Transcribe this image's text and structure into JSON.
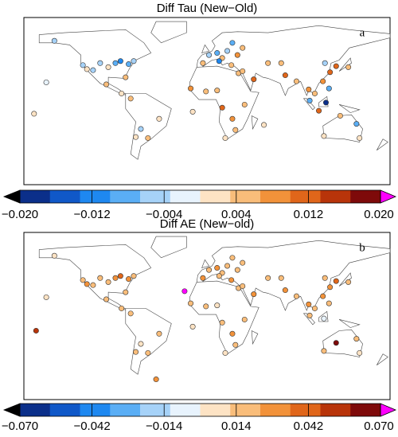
{
  "chart_data": [
    {
      "type": "scatter-map",
      "title": "Diff Tau (New−Old)",
      "label": "a",
      "lon": [
        -122,
        -118,
        -112,
        -105,
        -97,
        -90,
        -85,
        -77,
        -72,
        -80,
        -99,
        -84,
        -75,
        -58,
        -47,
        -65,
        -70,
        -150,
        -158,
        -170,
        2,
        10,
        15,
        25,
        35,
        20,
        -4,
        12,
        24,
        30,
        -16,
        -1,
        10,
        31,
        46,
        35,
        37,
        28,
        18,
        25,
        15,
        77,
        88,
        100,
        116,
        121,
        127,
        139,
        114,
        106,
        120,
        110,
        101,
        117,
        147,
        131,
        115,
        150,
        73,
        60,
        56,
        -14
      ],
      "lat": [
        38,
        34,
        33,
        40,
        36,
        40,
        42,
        39,
        42,
        26,
        19,
        10,
        5,
        -34,
        -15,
        -25,
        -33,
        62,
        21,
        -10,
        48,
        50,
        45,
        60,
        55,
        52,
        40,
        42,
        38,
        48,
        15,
        12,
        13,
        30,
        24,
        32,
        -1,
        -26,
        -34,
        -15,
        -4,
        28,
        22,
        14,
        40,
        31,
        37,
        36,
        22,
        10,
        15,
        -7,
        3,
        1,
        -20,
        -12,
        -32,
        -34,
        40,
        40,
        -21,
        -8
      ],
      "values": [
        -0.004,
        0.002,
        -0.006,
        -0.004,
        0.001,
        -0.008,
        -0.012,
        -0.01,
        -0.006,
        0.004,
        0.006,
        0.002,
        0.006,
        0.004,
        0.002,
        -0.004,
        0.002,
        -0.004,
        -0.002,
        0.001,
        -0.006,
        -0.008,
        0.004,
        -0.01,
        0.006,
        -0.004,
        0.006,
        -0.012,
        0.004,
        0.008,
        0.008,
        0.006,
        0.004,
        0.006,
        0.01,
        0.004,
        0.006,
        0.004,
        0.002,
        0.008,
        0.01,
        0.012,
        0.006,
        0.008,
        -0.004,
        0.01,
        0.012,
        0.004,
        0.008,
        0.006,
        -0.01,
        0.01,
        -0.008,
        -0.018,
        -0.008,
        0.004,
        0.002,
        0.001,
        0.004,
        0.004,
        0.001,
        0.001
      ],
      "ticks": [
        {
          "value": -0.02,
          "label": "−0.020"
        },
        {
          "value": -0.012,
          "label": "−0.012"
        },
        {
          "value": -0.004,
          "label": "−0.004"
        },
        0.004,
        0.012,
        {
          "value": 0.02,
          "label": "0.020"
        }
      ],
      "colormap": [
        "#0b2f8a",
        "#1058c8",
        "#1e88f0",
        "#5aaef5",
        "#a6d2f8",
        "#e8f3fd",
        "#fde3c4",
        "#f9bd7a",
        "#f2923a",
        "#e0661a",
        "#b8340a",
        "#7e0a0a"
      ],
      "under_color": "#000000",
      "over_color": "#ff00ff"
    },
    {
      "type": "scatter-map",
      "title": "Diff AE (New−old)",
      "label": "b",
      "lon": [
        -122,
        -118,
        -112,
        -105,
        -97,
        -90,
        -85,
        -77,
        -72,
        -80,
        -99,
        -84,
        -75,
        -58,
        -47,
        -65,
        -70,
        -150,
        -158,
        -168,
        -22,
        2,
        10,
        15,
        25,
        35,
        20,
        -4,
        12,
        24,
        30,
        -16,
        -1,
        10,
        31,
        46,
        35,
        37,
        28,
        18,
        25,
        15,
        77,
        88,
        100,
        116,
        121,
        127,
        139,
        114,
        106,
        120,
        115,
        101,
        147,
        127,
        115,
        150,
        73,
        60,
        -14,
        -50
      ],
      "lat": [
        38,
        34,
        33,
        40,
        36,
        40,
        42,
        39,
        42,
        26,
        19,
        10,
        5,
        -34,
        -15,
        -25,
        -33,
        62,
        21,
        -12,
        27,
        48,
        50,
        45,
        60,
        55,
        52,
        40,
        42,
        38,
        48,
        15,
        12,
        13,
        30,
        24,
        32,
        -1,
        -26,
        -34,
        -15,
        -4,
        28,
        22,
        14,
        40,
        31,
        37,
        36,
        22,
        10,
        15,
        0,
        3,
        -20,
        -24,
        -32,
        -34,
        40,
        40,
        -8,
        -60
      ],
      "values": [
        0.014,
        0.028,
        0.02,
        0.014,
        0.02,
        0.028,
        0.035,
        0.03,
        0.02,
        0.014,
        0.02,
        0.014,
        0.02,
        0.014,
        0.02,
        0.01,
        0.014,
        0.005,
        0.01,
        0.05,
        0.07,
        0.02,
        0.028,
        0.02,
        0.014,
        0.02,
        0.014,
        0.03,
        0.02,
        0.028,
        0.02,
        0.014,
        0.02,
        0.01,
        0.02,
        0.028,
        0.014,
        0.02,
        0.014,
        0.01,
        0.028,
        0.02,
        0.028,
        0.02,
        0.03,
        0.014,
        0.028,
        0.035,
        0.02,
        0.028,
        0.02,
        0.014,
        -0.01,
        0.02,
        0.014,
        0.06,
        0.014,
        0.01,
        0.02,
        0.014,
        0.01,
        0.028
      ],
      "ticks": [
        {
          "value": -0.07,
          "label": "−0.070"
        },
        {
          "value": -0.042,
          "label": "−0.042"
        },
        {
          "value": -0.014,
          "label": "−0.014"
        },
        0.014,
        0.042,
        {
          "value": 0.07,
          "label": "0.070"
        }
      ],
      "colormap": [
        "#0b2f8a",
        "#1058c8",
        "#1e88f0",
        "#5aaef5",
        "#a6d2f8",
        "#e8f3fd",
        "#fde3c4",
        "#f9bd7a",
        "#f2923a",
        "#e0661a",
        "#b8340a",
        "#7e0a0a"
      ],
      "under_color": "#000000",
      "over_color": "#ff00ff"
    }
  ]
}
